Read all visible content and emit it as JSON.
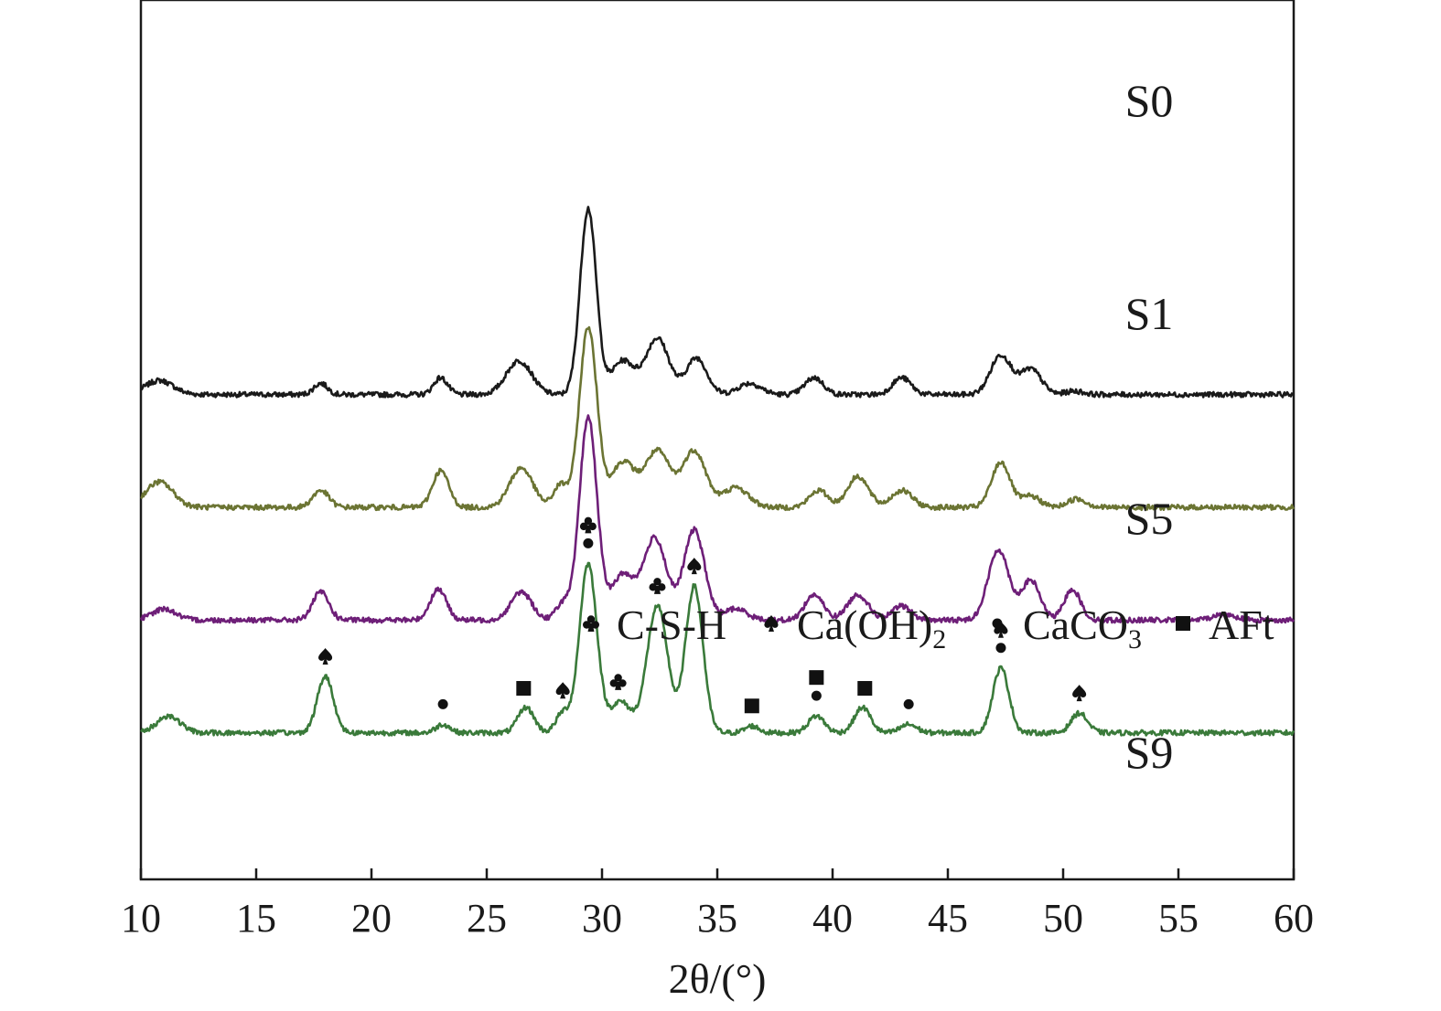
{
  "chart_data": {
    "type": "line",
    "xlabel": "2θ/(°)",
    "xlim": [
      10,
      60
    ],
    "xticks": [
      10,
      15,
      20,
      25,
      30,
      35,
      40,
      45,
      50,
      55,
      60
    ],
    "y_axis_ticks": false,
    "colors": {
      "S0": "#1a1a1a",
      "S1": "#6b7433",
      "S5": "#6e1f78",
      "S9": "#3a7a3a",
      "axis": "#1a1a1a",
      "marker": "#111111"
    },
    "series": [
      {
        "name": "S0",
        "baseline": 5,
        "peaks": [
          [
            10.8,
            0.25,
            0.6
          ],
          [
            17.8,
            0.2,
            0.3
          ],
          [
            23.0,
            0.3,
            0.3
          ],
          [
            26.4,
            0.6,
            0.55
          ],
          [
            29.4,
            3.3,
            0.35
          ],
          [
            30.9,
            0.6,
            0.5
          ],
          [
            32.4,
            1.0,
            0.5
          ],
          [
            34.1,
            0.65,
            0.45
          ],
          [
            36.4,
            0.2,
            0.5
          ],
          [
            39.2,
            0.3,
            0.4
          ],
          [
            43.0,
            0.3,
            0.4
          ],
          [
            47.3,
            0.7,
            0.45
          ],
          [
            48.6,
            0.45,
            0.45
          ],
          [
            50.5,
            0.06,
            0.4
          ]
        ]
      },
      {
        "name": "S1",
        "baseline": 3,
        "peaks": [
          [
            10.8,
            0.45,
            0.6
          ],
          [
            17.8,
            0.3,
            0.35
          ],
          [
            23.0,
            0.65,
            0.35
          ],
          [
            26.5,
            0.7,
            0.5
          ],
          [
            28.2,
            0.4,
            0.3
          ],
          [
            29.4,
            3.2,
            0.38
          ],
          [
            30.9,
            0.8,
            0.5
          ],
          [
            32.4,
            1.0,
            0.55
          ],
          [
            34.0,
            1.0,
            0.5
          ],
          [
            35.8,
            0.35,
            0.55
          ],
          [
            39.4,
            0.3,
            0.4
          ],
          [
            41.1,
            0.55,
            0.45
          ],
          [
            43.0,
            0.3,
            0.45
          ],
          [
            47.3,
            0.8,
            0.4
          ],
          [
            48.6,
            0.2,
            0.4
          ],
          [
            50.6,
            0.15,
            0.4
          ]
        ]
      },
      {
        "name": "S5",
        "baseline": 1,
        "peaks": [
          [
            11.0,
            0.2,
            0.5
          ],
          [
            17.8,
            0.5,
            0.35
          ],
          [
            22.9,
            0.55,
            0.35
          ],
          [
            26.5,
            0.5,
            0.45
          ],
          [
            28.3,
            0.3,
            0.3
          ],
          [
            29.4,
            3.6,
            0.38
          ],
          [
            30.9,
            0.8,
            0.5
          ],
          [
            32.3,
            1.45,
            0.5
          ],
          [
            34.0,
            1.6,
            0.45
          ],
          [
            35.8,
            0.2,
            0.5
          ],
          [
            39.2,
            0.45,
            0.4
          ],
          [
            41.1,
            0.45,
            0.45
          ],
          [
            43.0,
            0.25,
            0.4
          ],
          [
            47.2,
            1.25,
            0.45
          ],
          [
            48.6,
            0.7,
            0.4
          ],
          [
            50.4,
            0.55,
            0.35
          ],
          [
            57.0,
            0.1,
            0.5
          ]
        ]
      },
      {
        "name": "S9",
        "baseline": -1,
        "peaks": [
          [
            11.2,
            0.3,
            0.5
          ],
          [
            18.0,
            1.0,
            0.35
          ],
          [
            23.1,
            0.15,
            0.3
          ],
          [
            26.7,
            0.45,
            0.35
          ],
          [
            28.3,
            0.35,
            0.3
          ],
          [
            29.4,
            3.0,
            0.38
          ],
          [
            30.8,
            0.55,
            0.45
          ],
          [
            32.4,
            2.25,
            0.45
          ],
          [
            34.0,
            2.6,
            0.38
          ],
          [
            36.5,
            0.12,
            0.3
          ],
          [
            39.3,
            0.3,
            0.35
          ],
          [
            41.3,
            0.45,
            0.35
          ],
          [
            43.3,
            0.15,
            0.35
          ],
          [
            47.3,
            1.15,
            0.35
          ],
          [
            50.7,
            0.35,
            0.35
          ]
        ]
      }
    ],
    "series_labels": [
      {
        "text": "S0",
        "series": "S0"
      },
      {
        "text": "S1",
        "series": "S1"
      },
      {
        "text": "S5",
        "series": "S5"
      },
      {
        "text": "S9",
        "series": "S9"
      }
    ],
    "phase_markers": [
      {
        "x": 18.0,
        "symbol": "spade"
      },
      {
        "x": 23.1,
        "symbol": "dot"
      },
      {
        "x": 26.6,
        "symbol": "square"
      },
      {
        "x": 28.3,
        "symbol": "spade"
      },
      {
        "x": 29.4,
        "symbol": "club",
        "stack": 1
      },
      {
        "x": 29.4,
        "symbol": "dot",
        "stack": 0
      },
      {
        "x": 30.7,
        "symbol": "club"
      },
      {
        "x": 32.4,
        "symbol": "club"
      },
      {
        "x": 34.0,
        "symbol": "spade"
      },
      {
        "x": 36.5,
        "symbol": "square"
      },
      {
        "x": 39.3,
        "symbol": "square",
        "stack": 1
      },
      {
        "x": 39.3,
        "symbol": "dot",
        "stack": 0
      },
      {
        "x": 41.4,
        "symbol": "square"
      },
      {
        "x": 43.3,
        "symbol": "dot"
      },
      {
        "x": 47.3,
        "symbol": "spade",
        "stack": 1
      },
      {
        "x": 47.3,
        "symbol": "dot",
        "stack": 0
      },
      {
        "x": 50.7,
        "symbol": "spade"
      }
    ],
    "legend": [
      {
        "symbol": "club",
        "label": "C-S-H"
      },
      {
        "symbol": "spade",
        "label": "Ca(OH)",
        "sub": "2"
      },
      {
        "symbol": "dot",
        "label": "CaCO",
        "sub": "3"
      },
      {
        "symbol": "square",
        "label": "AFt"
      }
    ]
  }
}
